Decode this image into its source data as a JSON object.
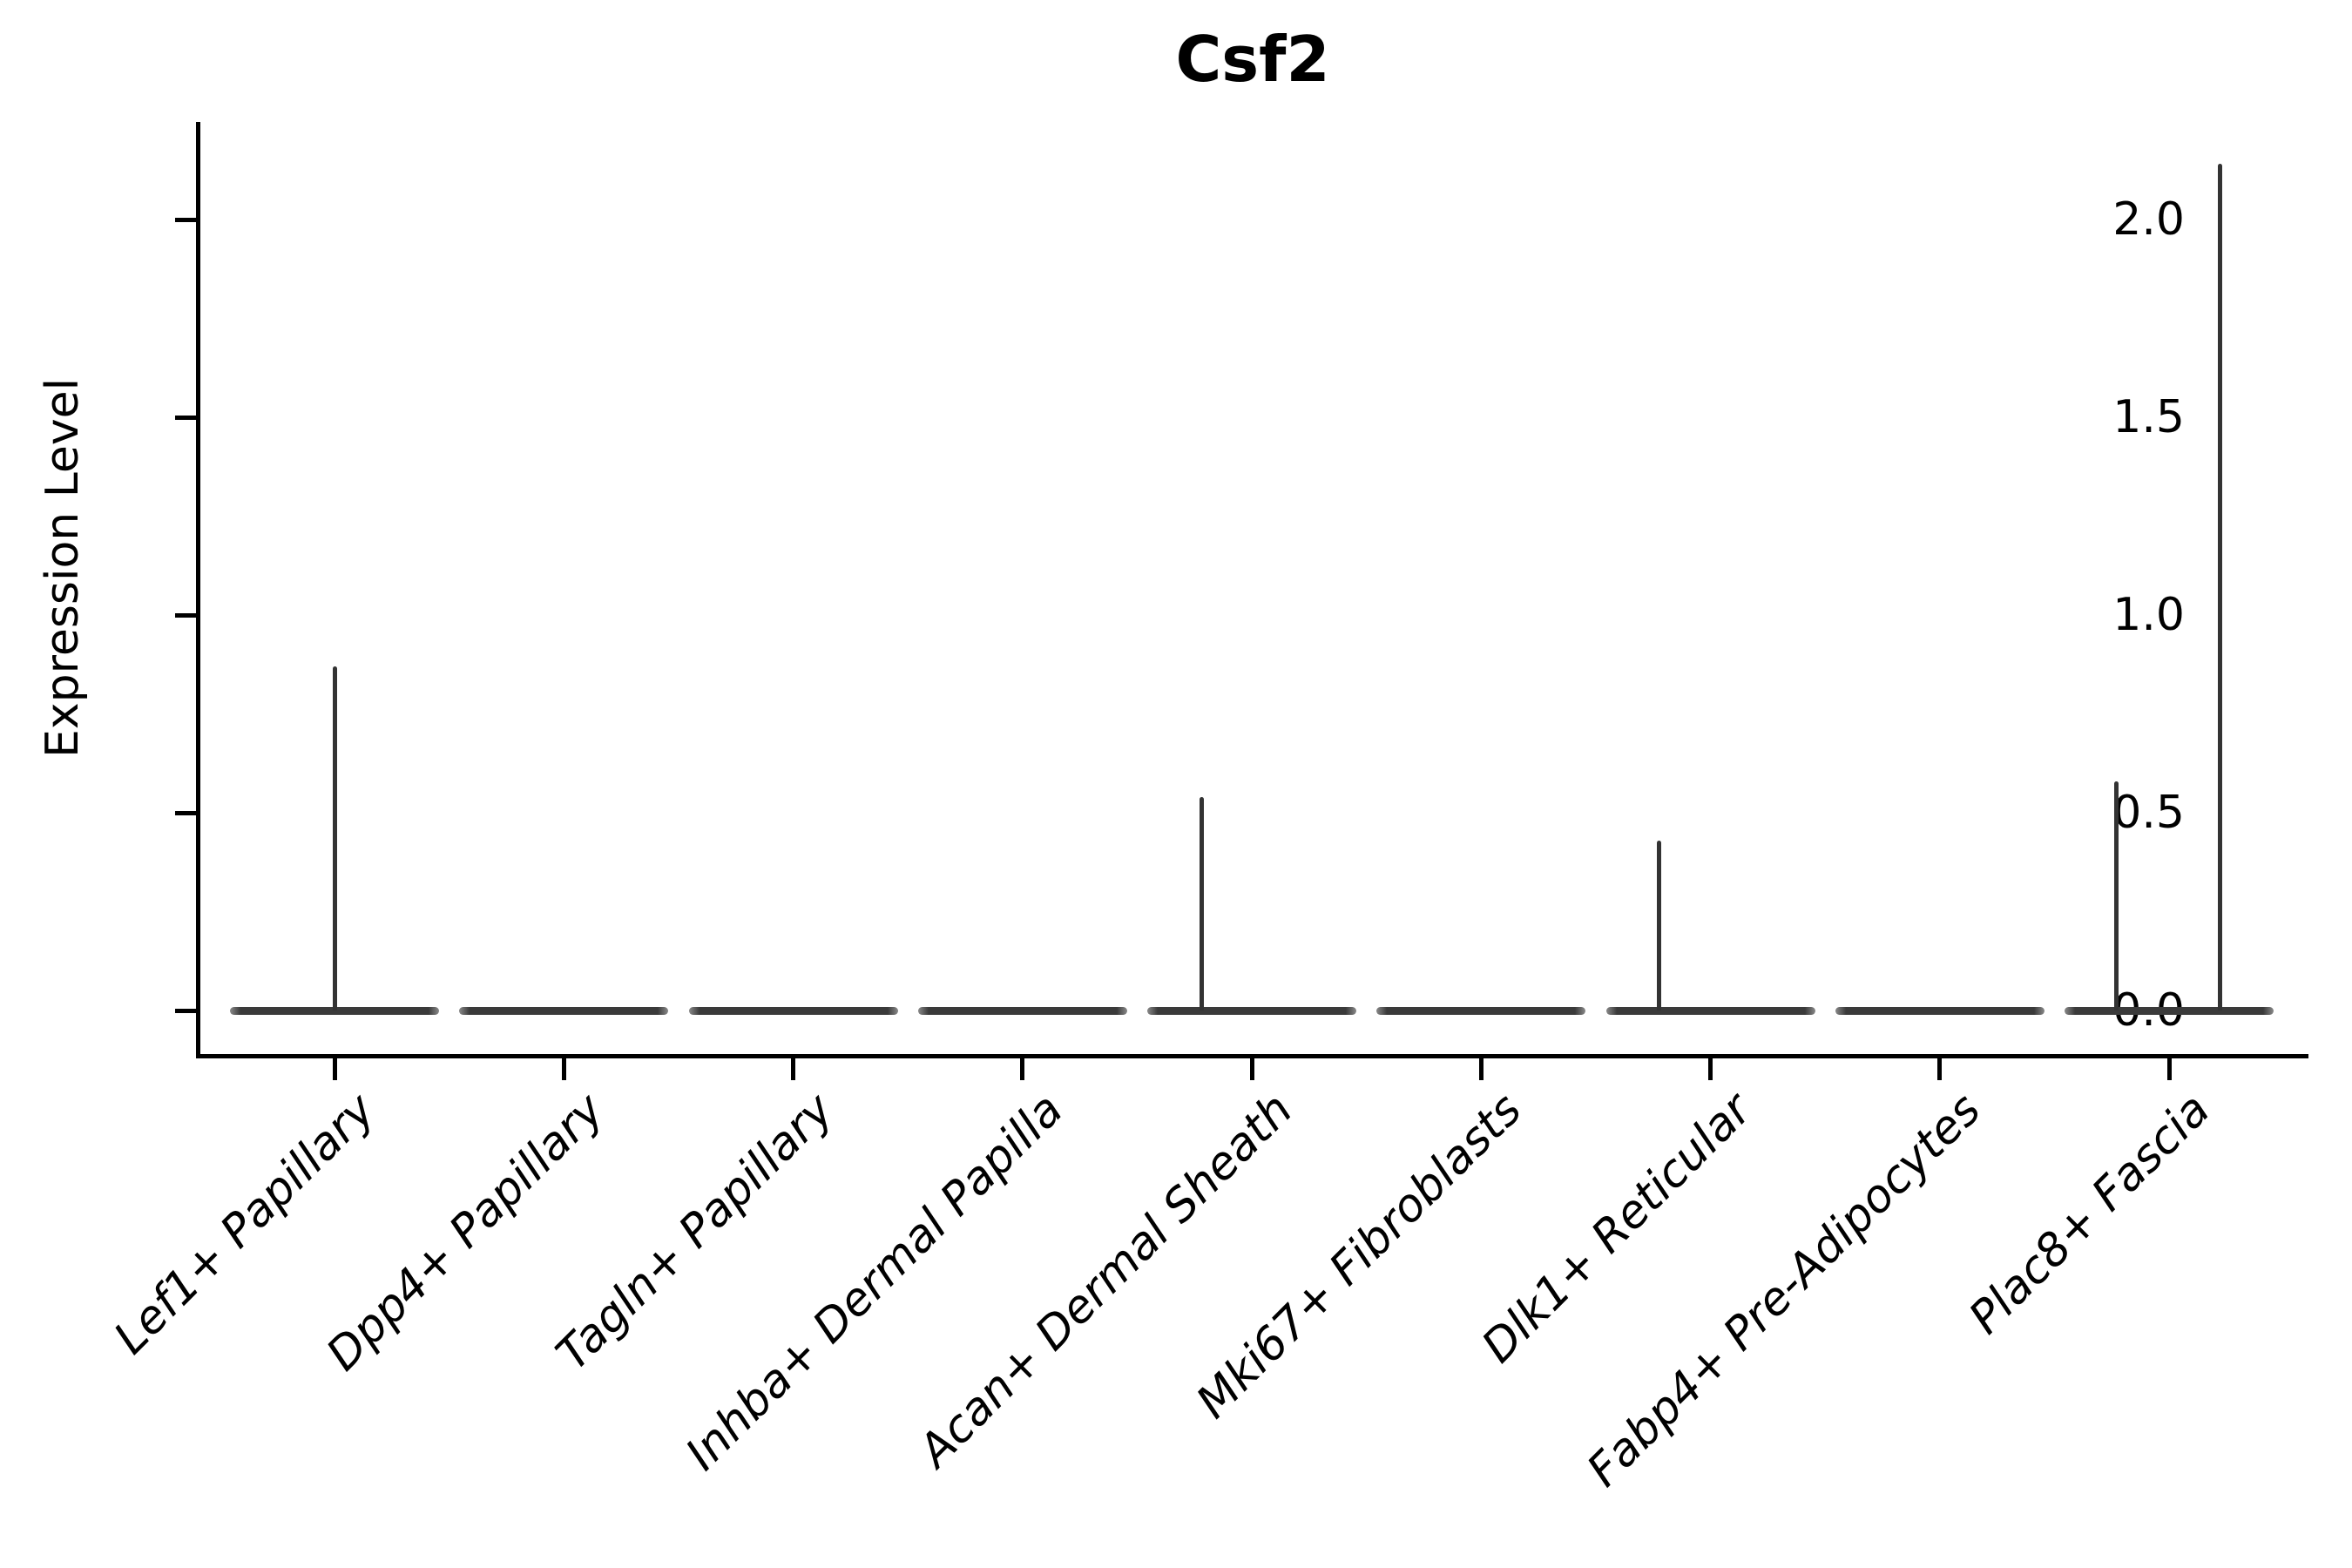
{
  "title": "Csf2",
  "axes": {
    "ylabel": "Expression Level",
    "yticks": [
      {
        "label": "2.0",
        "value": 2.0
      },
      {
        "label": "1.5",
        "value": 1.5
      },
      {
        "label": "1.0",
        "value": 1.0
      },
      {
        "label": "0.5",
        "value": 0.5
      },
      {
        "label": "0.0",
        "value": 0.0
      }
    ]
  },
  "chart_data": {
    "type": "violin",
    "title": "Csf2",
    "xlabel": "",
    "ylabel": "Expression Level",
    "ylim": [
      -0.11,
      2.25
    ],
    "yticks": [
      0.0,
      0.5,
      1.0,
      1.5,
      2.0
    ],
    "grid": false,
    "legend": "none",
    "categories": [
      "Lef1+ Papillary",
      "Dpp4+ Papillary",
      "Tagln+ Papillary",
      "Inhba+ Dermal Papilla",
      "Acan+ Dermal Sheath",
      "Mki67+ Fibroblasts",
      "Dlk1+ Reticular",
      "Fabp4+ Pre-Adipocytes",
      "Plac8+ Fascia"
    ],
    "description": "Violin plot of Csf2 expression; every cluster is a flat violin at 0 with thin density spikes up to the max expressing cells.",
    "series": [
      {
        "name": "Lef1+ Papillary",
        "zero_body": true,
        "max": 0.87,
        "spikes": [
          {
            "value": 0.87,
            "offset_frac": 0.0
          }
        ]
      },
      {
        "name": "Dpp4+ Papillary",
        "zero_body": true,
        "max": 0.0,
        "spikes": []
      },
      {
        "name": "Tagln+ Papillary",
        "zero_body": true,
        "max": 0.0,
        "spikes": []
      },
      {
        "name": "Inhba+ Dermal Papilla",
        "zero_body": true,
        "max": 0.0,
        "spikes": []
      },
      {
        "name": "Acan+ Dermal Sheath",
        "zero_body": true,
        "max": 0.54,
        "spikes": [
          {
            "value": 0.54,
            "offset_frac": -0.22
          }
        ]
      },
      {
        "name": "Mki67+ Fibroblasts",
        "zero_body": true,
        "max": 0.0,
        "spikes": []
      },
      {
        "name": "Dlk1+ Reticular",
        "zero_body": true,
        "max": 0.43,
        "spikes": [
          {
            "value": 0.43,
            "offset_frac": -0.226
          }
        ]
      },
      {
        "name": "Fabp4+ Pre-Adipocytes",
        "zero_body": true,
        "max": 0.0,
        "spikes": []
      },
      {
        "name": "Plac8+ Fascia",
        "zero_body": true,
        "max": 2.14,
        "spikes": [
          {
            "value": 0.58,
            "offset_frac": -0.228
          },
          {
            "value": 2.14,
            "offset_frac": 0.224
          }
        ]
      }
    ],
    "violin_width_frac": 0.91,
    "colors": {
      "violin": "#3a3a3a",
      "axis": "#000000",
      "background": "#ffffff"
    }
  }
}
